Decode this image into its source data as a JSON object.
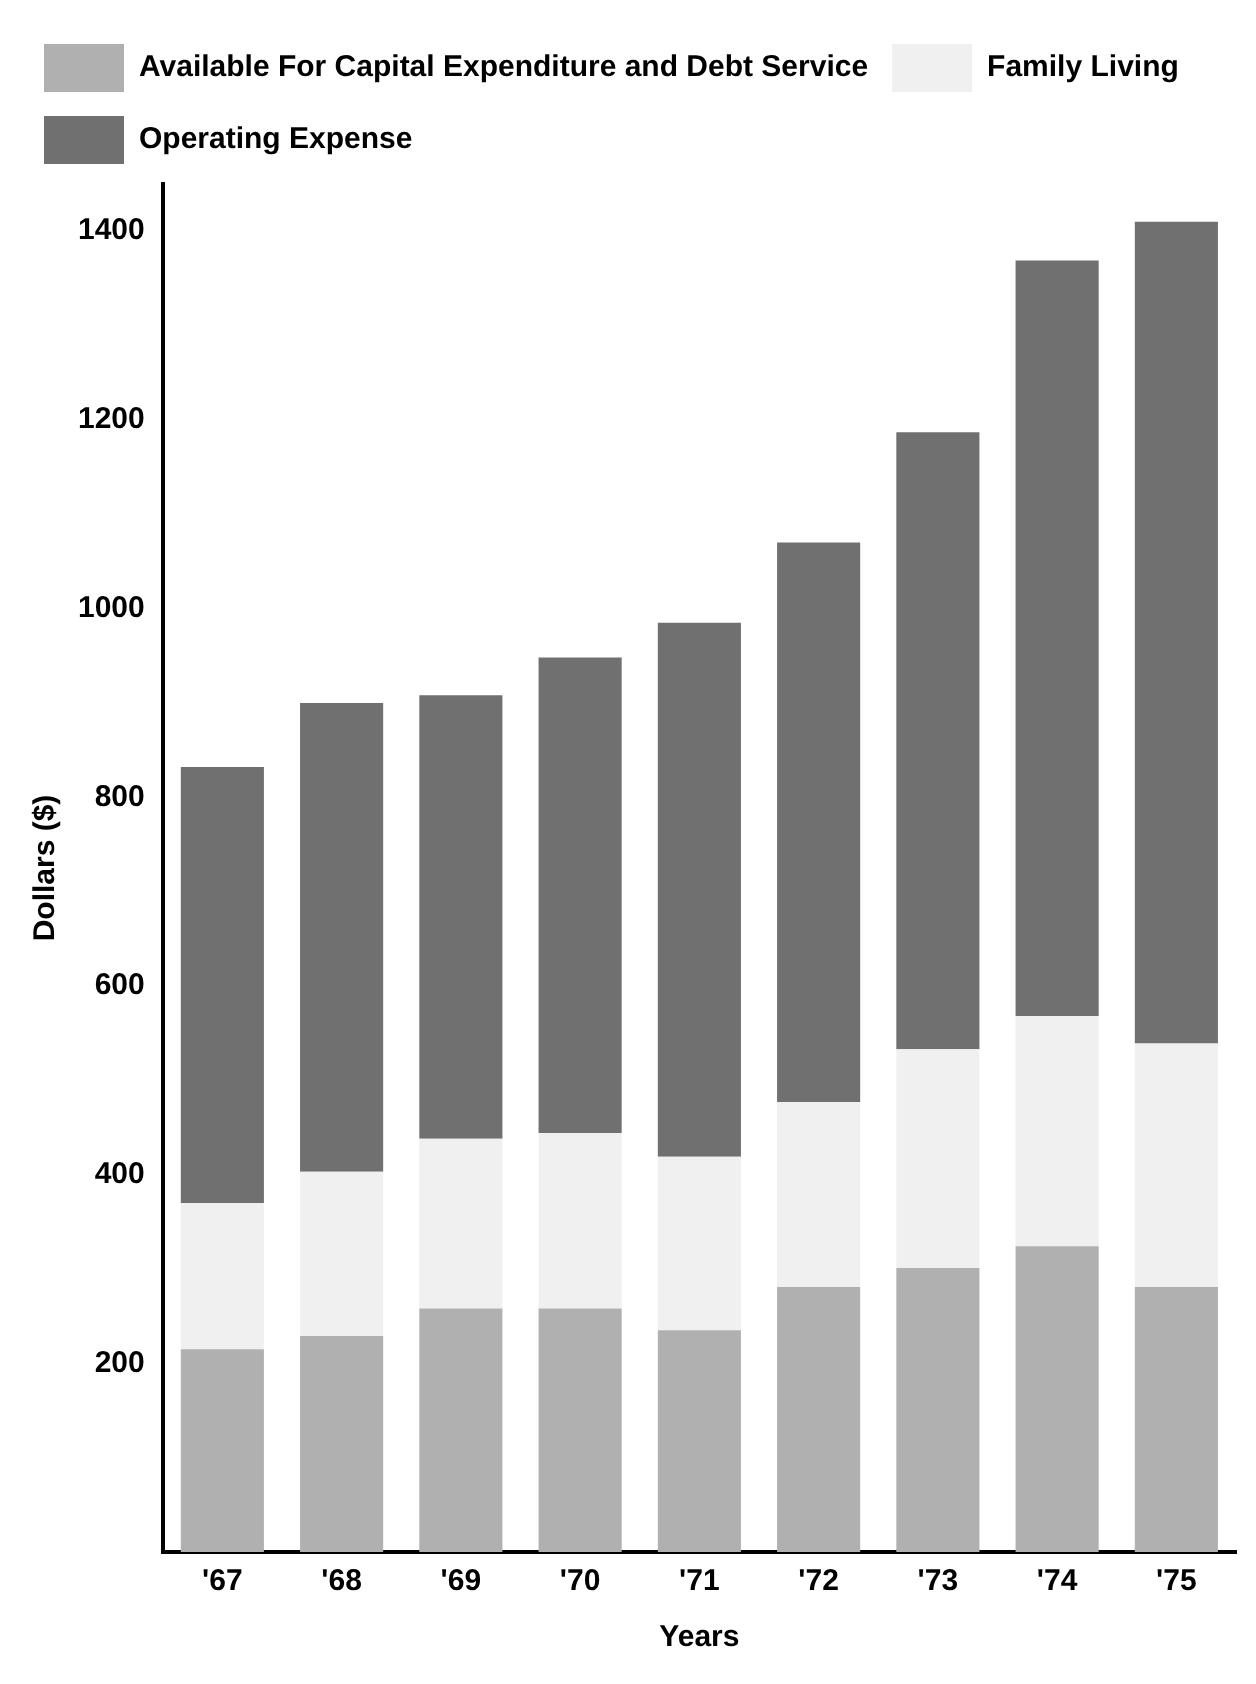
{
  "chart_data": {
    "type": "bar",
    "stacked": true,
    "xlabel": "Years",
    "ylabel": "Dollars ($)",
    "categories": [
      "'67",
      "'68",
      "'69",
      "'70",
      "'71",
      "'72",
      "'73",
      "'74",
      "'75"
    ],
    "series": [
      {
        "name": "Available For Capital Expenditure and Debt Service",
        "color": "#b0b0b0",
        "values": [
          215,
          229,
          258,
          258,
          235,
          281,
          301,
          324,
          281
        ]
      },
      {
        "name": "Family Living",
        "color": "#f0f0f0",
        "values": [
          155,
          174,
          180,
          186,
          184,
          196,
          232,
          244,
          258
        ]
      },
      {
        "name": "Operating Expense",
        "color": "#707070",
        "values": [
          462,
          497,
          470,
          504,
          566,
          593,
          654,
          801,
          871
        ]
      }
    ],
    "ylim": [
      0,
      1450
    ],
    "yticks": [
      200,
      400,
      600,
      800,
      1000,
      1200,
      1400
    ],
    "grid": false,
    "legend": "top left"
  }
}
